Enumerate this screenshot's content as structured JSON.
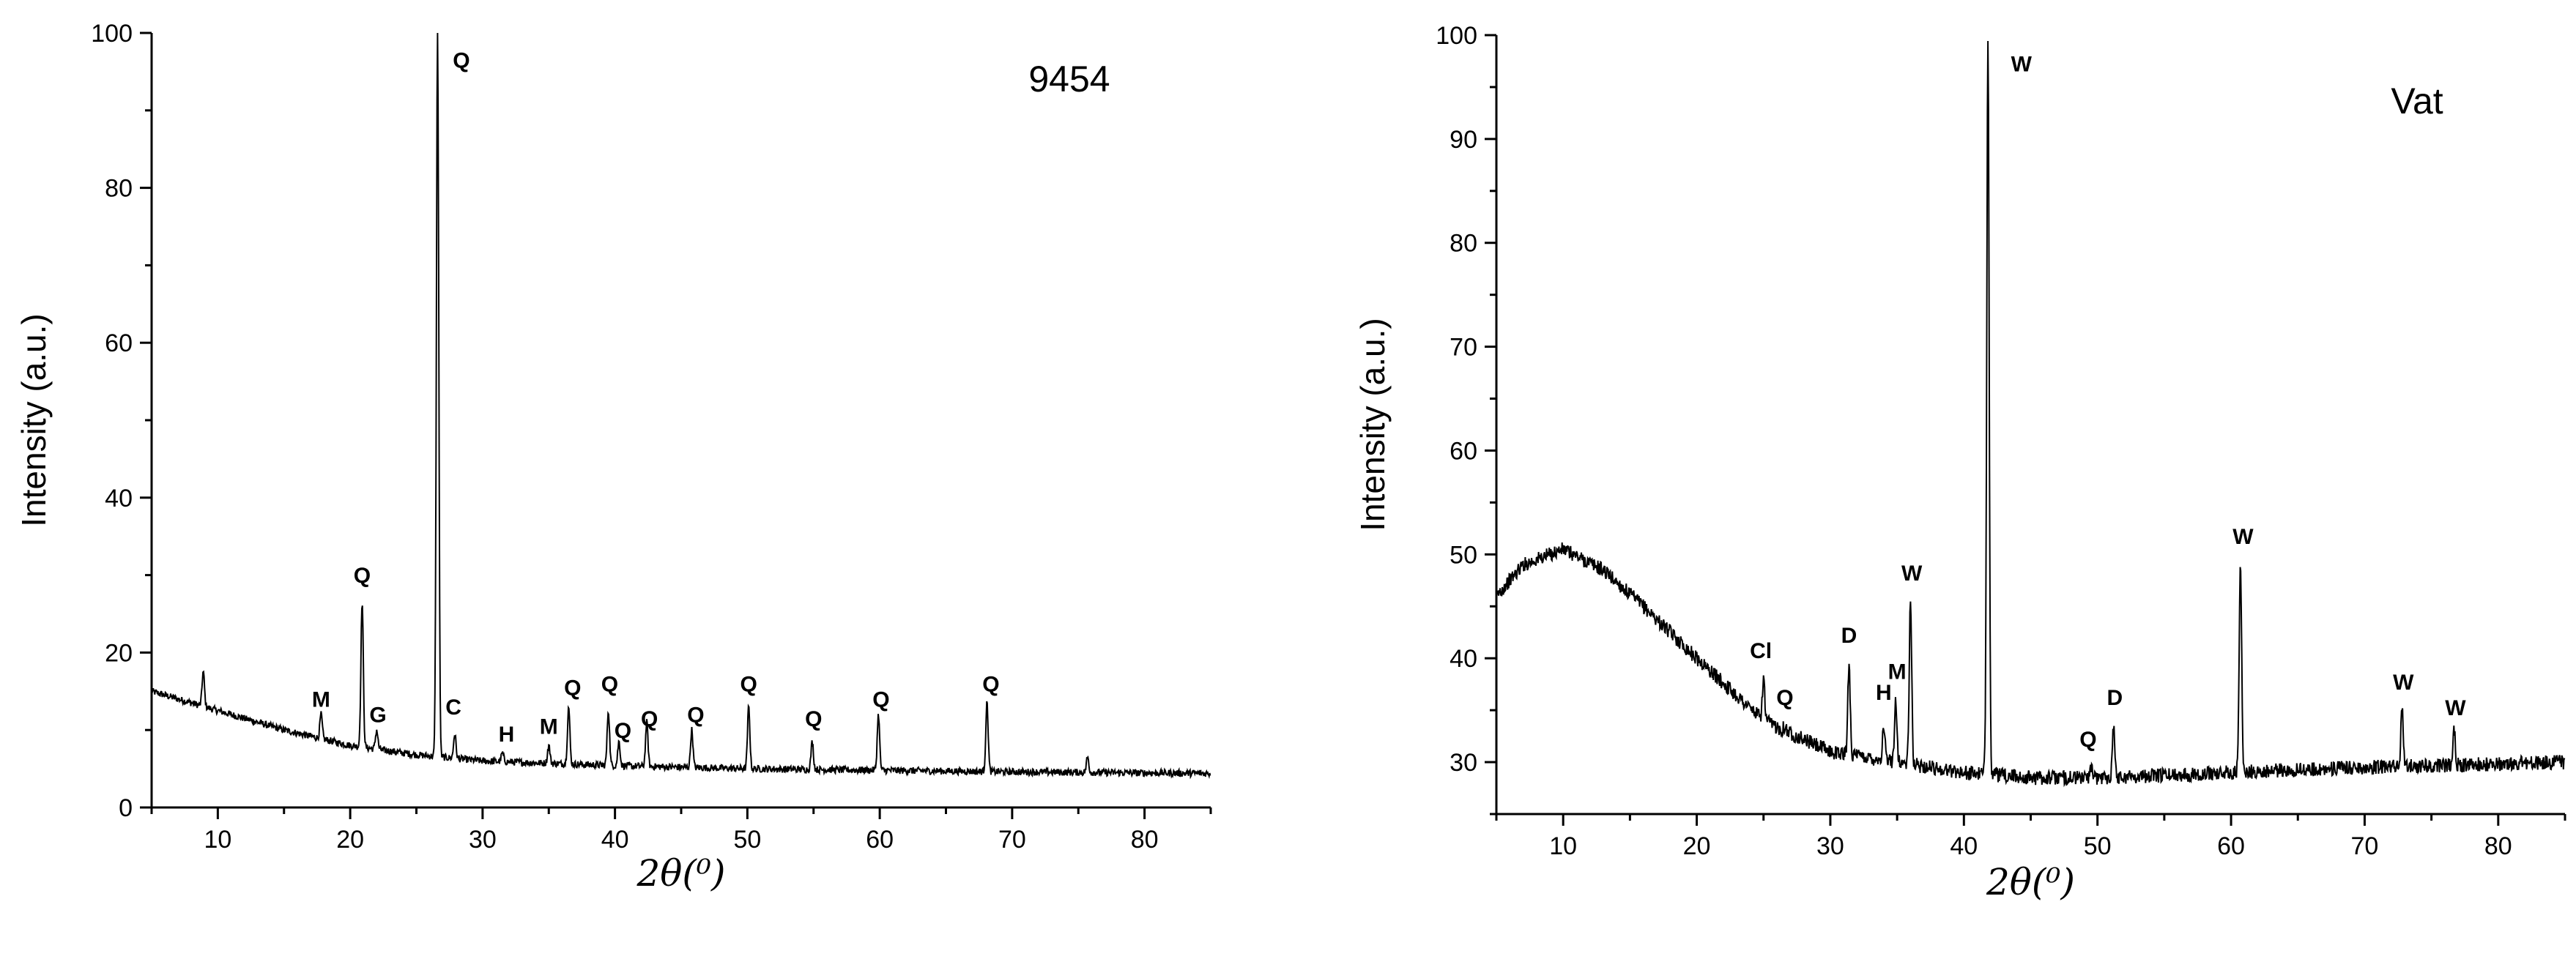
{
  "chart_data": [
    {
      "type": "line",
      "inset_label": "9454",
      "xlabel": "2θ(⁰)",
      "ylabel": "Intensity (a.u.)",
      "xlim": [
        5,
        85
      ],
      "ylim": [
        0,
        100
      ],
      "x_ticks": [
        10,
        20,
        30,
        40,
        50,
        60,
        70,
        80
      ],
      "y_ticks": [
        0,
        20,
        40,
        60,
        80,
        100
      ],
      "grid": false,
      "baseline": {
        "x": [
          5,
          10,
          15,
          20,
          25,
          30,
          40,
          50,
          60,
          70,
          85
        ],
        "y": [
          15,
          12.5,
          10,
          8,
          6.8,
          6,
          5.4,
          5,
          4.8,
          4.6,
          4.4
        ]
      },
      "peaks": [
        {
          "x": 8.9,
          "y": 17.5
        },
        {
          "x": 17.8,
          "y": 12
        },
        {
          "x": 20.9,
          "y": 26.5
        },
        {
          "x": 22.0,
          "y": 10
        },
        {
          "x": 26.6,
          "y": 100
        },
        {
          "x": 27.9,
          "y": 9.5
        },
        {
          "x": 31.5,
          "y": 7
        },
        {
          "x": 35.0,
          "y": 8
        },
        {
          "x": 36.5,
          "y": 13
        },
        {
          "x": 39.5,
          "y": 12.5
        },
        {
          "x": 40.3,
          "y": 8.5
        },
        {
          "x": 42.4,
          "y": 11
        },
        {
          "x": 45.8,
          "y": 10
        },
        {
          "x": 50.1,
          "y": 13
        },
        {
          "x": 54.9,
          "y": 8.5
        },
        {
          "x": 59.9,
          "y": 12
        },
        {
          "x": 68.1,
          "y": 13.5
        },
        {
          "x": 75.7,
          "y": 6.5
        }
      ],
      "annotations": [
        {
          "text": "Q",
          "x": 28.4,
          "y": 95.5
        },
        {
          "text": "Q",
          "x": 20.9,
          "y": 29
        },
        {
          "text": "M",
          "x": 17.8,
          "y": 13
        },
        {
          "text": "G",
          "x": 22.1,
          "y": 11
        },
        {
          "text": "C",
          "x": 27.8,
          "y": 12
        },
        {
          "text": "H",
          "x": 31.8,
          "y": 8.5
        },
        {
          "text": "M",
          "x": 35.0,
          "y": 9.5
        },
        {
          "text": "Q",
          "x": 36.8,
          "y": 14.5
        },
        {
          "text": "Q",
          "x": 39.6,
          "y": 15
        },
        {
          "text": "Q",
          "x": 40.6,
          "y": 9
        },
        {
          "text": "Q",
          "x": 42.6,
          "y": 10.5
        },
        {
          "text": "Q",
          "x": 46.1,
          "y": 11
        },
        {
          "text": "Q",
          "x": 50.1,
          "y": 15
        },
        {
          "text": "Q",
          "x": 55.0,
          "y": 10.5
        },
        {
          "text": "Q",
          "x": 60.1,
          "y": 13
        },
        {
          "text": "Q",
          "x": 68.4,
          "y": 15
        }
      ]
    },
    {
      "type": "line",
      "inset_label": "Vat",
      "xlabel": "2θ(⁰)",
      "ylabel": "Intensity (a.u.)",
      "xlim": [
        5,
        85
      ],
      "ylim": [
        25,
        100
      ],
      "x_ticks": [
        10,
        20,
        30,
        40,
        50,
        60,
        70,
        80
      ],
      "y_ticks": [
        30,
        40,
        50,
        60,
        70,
        80,
        90,
        100
      ],
      "grid": false,
      "baseline": {
        "x": [
          5,
          7,
          10,
          13,
          16,
          20,
          25,
          30,
          35,
          40,
          45,
          50,
          60,
          70,
          85
        ],
        "y": [
          46,
          49,
          50.5,
          48.5,
          45,
          40,
          34,
          31,
          30,
          29,
          28.5,
          28.5,
          29,
          29.5,
          30
        ]
      },
      "peaks": [
        {
          "x": 25.0,
          "y": 38
        },
        {
          "x": 26.6,
          "y": 33.5
        },
        {
          "x": 31.4,
          "y": 39.5
        },
        {
          "x": 34.0,
          "y": 33.5
        },
        {
          "x": 34.9,
          "y": 36
        },
        {
          "x": 36.0,
          "y": 45.5
        },
        {
          "x": 41.8,
          "y": 100
        },
        {
          "x": 49.5,
          "y": 29.5
        },
        {
          "x": 51.2,
          "y": 33.5
        },
        {
          "x": 60.7,
          "y": 49
        },
        {
          "x": 72.8,
          "y": 35
        },
        {
          "x": 76.7,
          "y": 33
        }
      ],
      "annotations": [
        {
          "text": "W",
          "x": 44.3,
          "y": 96.5
        },
        {
          "text": "Cl",
          "x": 24.8,
          "y": 40
        },
        {
          "text": "Q",
          "x": 26.6,
          "y": 35.5
        },
        {
          "text": "D",
          "x": 31.4,
          "y": 41.5
        },
        {
          "text": "H",
          "x": 34.0,
          "y": 36
        },
        {
          "text": "M",
          "x": 35.0,
          "y": 38
        },
        {
          "text": "W",
          "x": 36.1,
          "y": 47.5
        },
        {
          "text": "Q",
          "x": 49.3,
          "y": 31.5
        },
        {
          "text": "D",
          "x": 51.3,
          "y": 35.5
        },
        {
          "text": "W",
          "x": 60.9,
          "y": 51
        },
        {
          "text": "W",
          "x": 72.9,
          "y": 37
        },
        {
          "text": "W",
          "x": 76.8,
          "y": 34.5
        }
      ]
    }
  ]
}
